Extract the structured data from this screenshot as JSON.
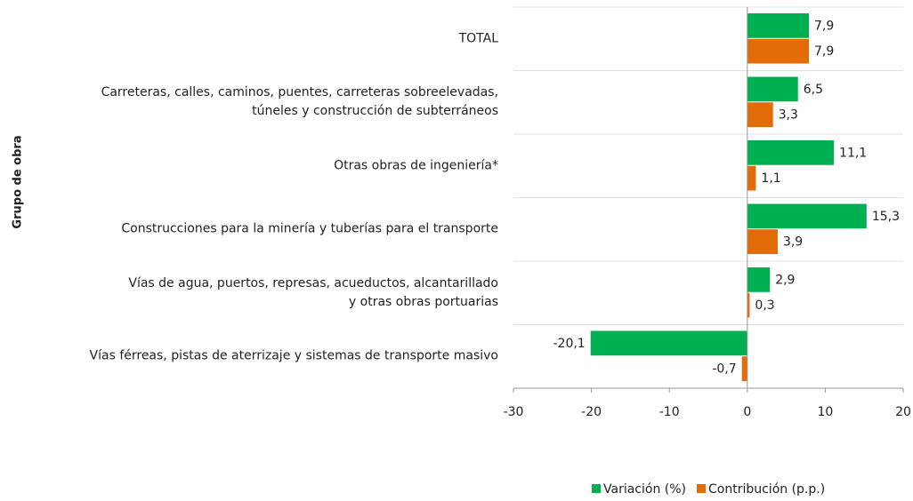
{
  "chart_data": {
    "type": "hbar",
    "y_label": "Grupo de obra",
    "categories": [
      "TOTAL",
      "Carreteras, calles, caminos, puentes, carreteras sobreelevadas,\ntúneles y construcción de subterráneos",
      "Otras obras de ingeniería*",
      "Construcciones para la minería y tuberías para el transporte",
      "Vías de agua, puertos, represas, acueductos, alcantarillado\ny otras obras portuarias",
      "Vías férreas, pistas de aterrizaje y sistemas de transporte masivo"
    ],
    "series": [
      {
        "name": "Variación (%)",
        "color": "#00b050",
        "values": [
          7.9,
          6.5,
          11.1,
          15.3,
          2.9,
          -20.1
        ],
        "value_labels": [
          "7,9",
          "6,5",
          "11,1",
          "15,3",
          "2,9",
          "-20,1"
        ]
      },
      {
        "name": "Contribución (p.p.)",
        "color": "#e36c09",
        "values": [
          7.9,
          3.3,
          1.1,
          3.9,
          0.3,
          -0.7
        ],
        "value_labels": [
          "7,9",
          "3,3",
          "1,1",
          "3,9",
          "0,3",
          "-0,7"
        ]
      }
    ],
    "xlim": [
      -30,
      20
    ],
    "xticks": [
      -30,
      -20,
      -10,
      0,
      10,
      20
    ],
    "grid": true,
    "legend": "bottom"
  }
}
